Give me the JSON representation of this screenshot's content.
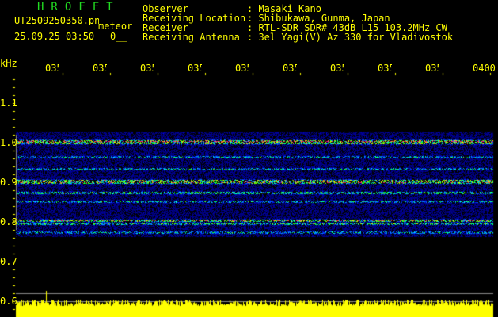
{
  "header": {
    "app_title": "HROFFT",
    "filename": "UT2509250350.png",
    "mode": "meteor",
    "datetime": "25.09.25 03:50",
    "counter": "0__",
    "info": [
      {
        "label": "Observer",
        "value": ": Masaki Kano"
      },
      {
        "label": "Receiving Location",
        "value": ": Shibukawa, Gunma, Japan"
      },
      {
        "label": "Receiver",
        "value": ": RTL-SDR SDR# 43dB L15 103.2MHz CW"
      },
      {
        "label": "Receiving Antenna",
        "value": ": 3el Yagi(V) Az 330 for Vladivostok"
      }
    ]
  },
  "axis": {
    "y_unit": "kHz",
    "y_ticks": [
      "1.1",
      "1.0",
      "0.9",
      "0.8",
      "0.7",
      "0.6"
    ],
    "x_ticks": [
      "0351",
      "0352",
      "0353",
      "0354",
      "0355",
      "0356",
      "0357",
      "0358",
      "0359",
      "0400"
    ]
  },
  "colors": {
    "text": "#ffff00",
    "title": "#22dd22",
    "background": "#000000"
  }
}
